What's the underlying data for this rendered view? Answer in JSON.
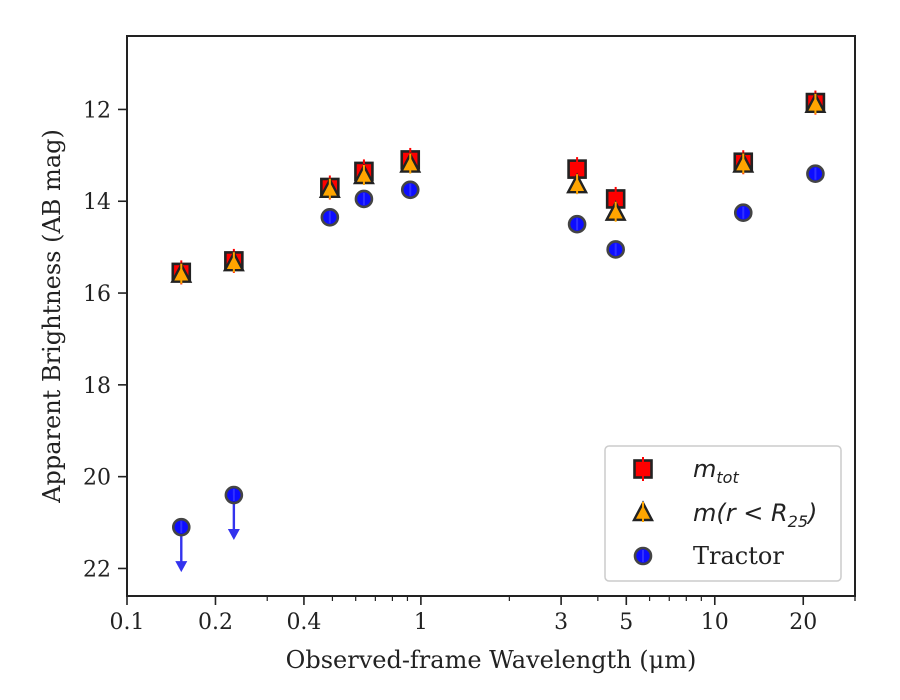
{
  "chart_data": {
    "type": "scatter",
    "title": "",
    "xlabel": "Observed-frame Wavelength (μm)",
    "ylabel": "Apparent Brightness (AB mag)",
    "xscale": "log",
    "xlim": [
      0.1,
      30
    ],
    "ylim": [
      22.6,
      10.4
    ],
    "y_inverted": true,
    "x_ticks": [
      {
        "value": 0.1,
        "label": "0.1"
      },
      {
        "value": 0.2,
        "label": "0.2"
      },
      {
        "value": 0.4,
        "label": "0.4"
      },
      {
        "value": 1,
        "label": "1"
      },
      {
        "value": 3,
        "label": "3"
      },
      {
        "value": 5,
        "label": "5"
      },
      {
        "value": 10,
        "label": "10"
      },
      {
        "value": 20,
        "label": "20"
      }
    ],
    "y_ticks": [
      {
        "value": 12,
        "label": "12"
      },
      {
        "value": 14,
        "label": "14"
      },
      {
        "value": 16,
        "label": "16"
      },
      {
        "value": 18,
        "label": "18"
      },
      {
        "value": 20,
        "label": "20"
      },
      {
        "value": 22,
        "label": "22"
      }
    ],
    "grid": false,
    "legend_position": "bottom-right",
    "series": [
      {
        "name": "m_tot",
        "legend_main": "m",
        "legend_sub": "tot",
        "marker": "square",
        "color": "#ff0000",
        "x": [
          0.153,
          0.231,
          0.49,
          0.64,
          0.92,
          3.4,
          4.6,
          12.5,
          22.0
        ],
        "y": [
          15.55,
          15.3,
          13.7,
          13.35,
          13.1,
          13.3,
          13.95,
          13.15,
          11.85
        ]
      },
      {
        "name": "m(r < R25)",
        "legend_main": "m(r < R",
        "legend_sub": "25",
        "legend_close": ")",
        "marker": "triangle",
        "color": "#ffa500",
        "x": [
          0.153,
          0.231,
          0.49,
          0.64,
          0.92,
          3.4,
          4.6,
          12.5,
          22.0
        ],
        "y": [
          15.6,
          15.35,
          13.75,
          13.45,
          13.2,
          13.65,
          14.25,
          13.2,
          11.9
        ]
      },
      {
        "name": "Tractor",
        "legend_main": "Tractor",
        "marker": "circle",
        "color": "#0000ff",
        "x": [
          0.153,
          0.231,
          0.49,
          0.64,
          0.92,
          3.4,
          4.6,
          12.5,
          22.0
        ],
        "y": [
          21.1,
          20.4,
          14.35,
          13.95,
          13.75,
          14.5,
          15.05,
          14.25,
          13.4
        ],
        "upper_limit": [
          true,
          true,
          false,
          false,
          false,
          false,
          false,
          false,
          false
        ]
      }
    ]
  },
  "colors": {
    "upper_limit_arrow": "#3333ee",
    "legend_border": "#cccccc",
    "marker_edge": "#222222"
  }
}
